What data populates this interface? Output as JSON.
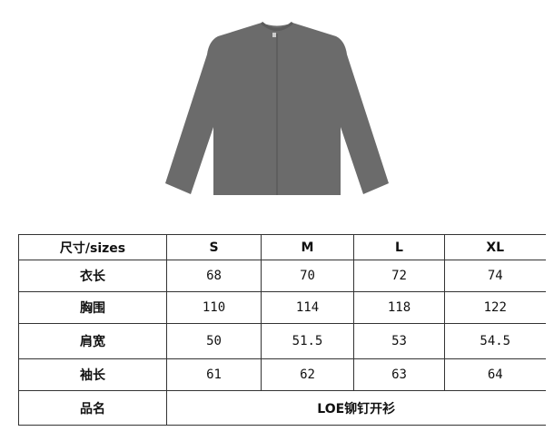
{
  "product_image": {
    "description_icon": "gray-cardigan",
    "color": "#6b6b6b"
  },
  "size_table": {
    "header": [
      "尺寸/sizes",
      "S",
      "M",
      "L",
      "XL"
    ],
    "rows": [
      {
        "label": "衣长",
        "values": [
          "68",
          "70",
          "72",
          "74"
        ]
      },
      {
        "label": "胸围",
        "values": [
          "110",
          "114",
          "118",
          "122"
        ]
      },
      {
        "label": "肩宽",
        "values": [
          "50",
          "51.5",
          "53",
          "54.5"
        ]
      },
      {
        "label": "袖长",
        "values": [
          "61",
          "62",
          "63",
          "64"
        ]
      }
    ],
    "name_row": {
      "label": "品名",
      "value": "LOE铆钉开衫"
    }
  }
}
